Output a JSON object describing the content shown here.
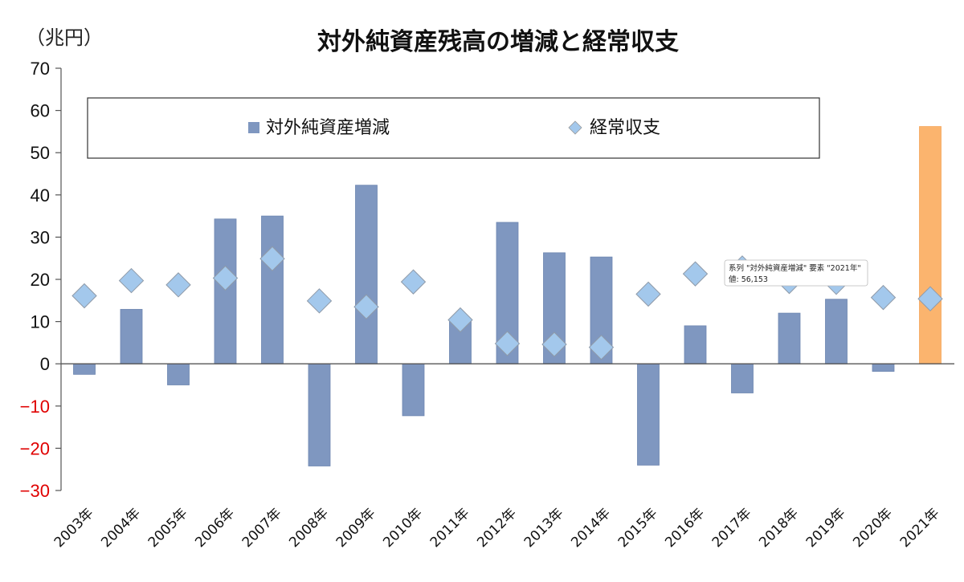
{
  "chart_data": {
    "type": "bar",
    "title": "対外純資産残高の増減と経常収支",
    "unit_label": "（兆円）",
    "categories": [
      "2003年",
      "2004年",
      "2005年",
      "2006年",
      "2007年",
      "2008年",
      "2009年",
      "2010年",
      "2011年",
      "2012年",
      "2013年",
      "2014年",
      "2015年",
      "2016年",
      "2017年",
      "2018年",
      "2019年",
      "2020年",
      "2021年"
    ],
    "ylim": [
      -30,
      70
    ],
    "yticks": [
      70,
      60,
      50,
      40,
      30,
      20,
      10,
      0,
      -10,
      -20,
      -30
    ],
    "gridlines": false,
    "legend_position": "top",
    "series": [
      {
        "name": "対外純資産増減",
        "kind": "bar",
        "color": "#7f97c0",
        "highlight_color": "#fbb46e",
        "highlight_index": 18,
        "values": [
          -2.5,
          12.9,
          -5.0,
          34.3,
          35.0,
          -24.2,
          42.3,
          -12.3,
          10.0,
          33.5,
          26.3,
          25.3,
          -24.0,
          9.0,
          -6.9,
          12.0,
          15.3,
          -1.8,
          56.2
        ]
      },
      {
        "name": "経常収支",
        "kind": "scatter",
        "marker": "diamond",
        "color": "#a3c8ec",
        "values": [
          16.1,
          19.7,
          18.7,
          20.3,
          24.9,
          14.9,
          13.5,
          19.4,
          10.4,
          4.8,
          4.6,
          3.9,
          16.5,
          21.3,
          22.7,
          19.5,
          19.3,
          15.7,
          15.4
        ]
      }
    ],
    "tooltip": {
      "line1": "系列 \"対外純資産増減\" 要素 \"2021年\"",
      "line2": "値: 56,153"
    },
    "colors": {
      "negative_tick": "#e00000",
      "positive_tick": "#111111",
      "axis": "#555555"
    }
  }
}
